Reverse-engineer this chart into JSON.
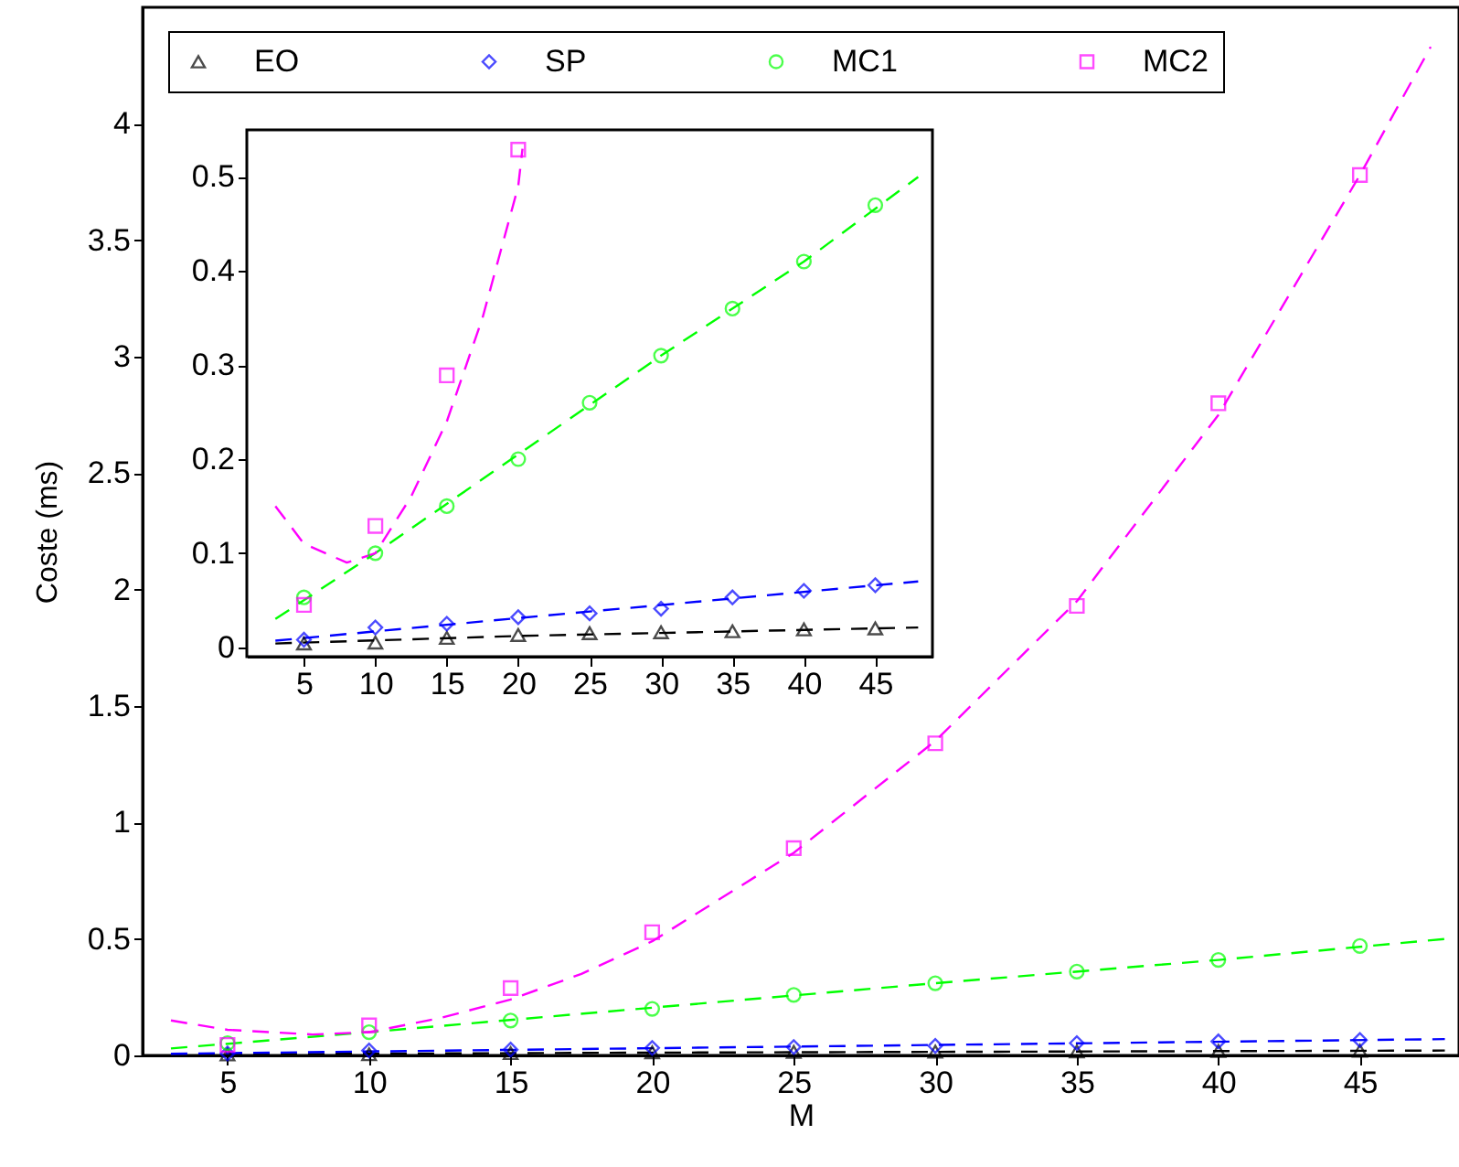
{
  "chart_data": [
    {
      "type": "scatter",
      "xlabel": "M",
      "ylabel": "Coste (ms)",
      "xlim": [
        2,
        48.5
      ],
      "ylim": [
        0,
        4.5
      ],
      "xticks": [
        5,
        10,
        15,
        20,
        25,
        30,
        35,
        40,
        45
      ],
      "yticks": [
        0,
        0.5,
        1,
        1.5,
        2,
        2.5,
        3,
        3.5,
        4
      ],
      "grid": false,
      "legend": "top",
      "series": [
        {
          "name": "EO",
          "marker": "triangle",
          "color": "#000000",
          "x": [
            5,
            10,
            15,
            20,
            25,
            30,
            35,
            40,
            45
          ],
          "values": [
            0.004,
            0.005,
            0.01,
            0.013,
            0.015,
            0.016,
            0.017,
            0.019,
            0.02
          ]
        },
        {
          "name": "SP",
          "marker": "diamond",
          "color": "#0000ff",
          "x": [
            5,
            10,
            15,
            20,
            25,
            30,
            35,
            40,
            45
          ],
          "values": [
            0.008,
            0.021,
            0.025,
            0.032,
            0.036,
            0.041,
            0.053,
            0.06,
            0.066
          ]
        },
        {
          "name": "MC1",
          "marker": "circle",
          "color": "#00ff00",
          "x": [
            5,
            10,
            15,
            20,
            25,
            30,
            35,
            40,
            45
          ],
          "values": [
            0.053,
            0.1,
            0.15,
            0.2,
            0.26,
            0.31,
            0.36,
            0.41,
            0.47
          ]
        },
        {
          "name": "MC2",
          "marker": "square",
          "color": "#ff00ff",
          "x": [
            5,
            10,
            15,
            20,
            25,
            30,
            35,
            40,
            45
          ],
          "values": [
            0.045,
            0.129,
            0.289,
            0.529,
            0.89,
            1.34,
            1.93,
            2.8,
            3.78
          ]
        },
        {
          "type": "line",
          "line_style": "dashed",
          "marker": "none",
          "color": "#000000",
          "x": [
            3,
            20,
            48
          ],
          "values": [
            0.004,
            0.012,
            0.021
          ]
        },
        {
          "type": "line",
          "line_style": "dashed",
          "marker": "none",
          "color": "#0000ff",
          "x": [
            3,
            20,
            48
          ],
          "values": [
            0.007,
            0.031,
            0.07
          ]
        },
        {
          "type": "line",
          "line_style": "dashed",
          "marker": "none",
          "color": "#00ff00",
          "x": [
            3,
            10,
            20,
            30,
            40,
            48
          ],
          "values": [
            0.03,
            0.1,
            0.205,
            0.31,
            0.41,
            0.5
          ]
        },
        {
          "type": "line",
          "line_style": "dashed",
          "marker": "none",
          "color": "#ff00ff",
          "x": [
            3,
            5,
            8,
            10,
            12.5,
            15,
            17.5,
            20,
            25,
            30,
            35,
            40,
            45,
            47.5
          ],
          "values": [
            0.15,
            0.11,
            0.09,
            0.1,
            0.16,
            0.24,
            0.35,
            0.49,
            0.87,
            1.35,
            1.95,
            2.75,
            3.78,
            4.33
          ]
        }
      ]
    },
    {
      "type": "scatter",
      "xlim": [
        1,
        49
      ],
      "ylim": [
        -0.01,
        0.55
      ],
      "xticks": [
        5,
        10,
        15,
        20,
        25,
        30,
        35,
        40,
        45
      ],
      "yticks": [
        0,
        0.1,
        0.2,
        0.3,
        0.4,
        0.5
      ],
      "grid": false,
      "series": [
        {
          "marker": "triangle",
          "color": "#000000",
          "x": [
            5,
            10,
            15,
            20,
            25,
            30,
            35,
            40,
            45
          ],
          "values": [
            0.004,
            0.005,
            0.01,
            0.013,
            0.015,
            0.016,
            0.017,
            0.019,
            0.02
          ]
        },
        {
          "marker": "diamond",
          "color": "#0000ff",
          "x": [
            5,
            10,
            15,
            20,
            25,
            30,
            35,
            40,
            45
          ],
          "values": [
            0.008,
            0.021,
            0.025,
            0.032,
            0.036,
            0.041,
            0.053,
            0.06,
            0.066
          ]
        },
        {
          "marker": "circle",
          "color": "#00ff00",
          "x": [
            5,
            10,
            15,
            20,
            25,
            30,
            35,
            40,
            45
          ],
          "values": [
            0.053,
            0.1,
            0.15,
            0.2,
            0.26,
            0.31,
            0.36,
            0.41,
            0.47
          ]
        },
        {
          "marker": "square",
          "color": "#ff00ff",
          "x": [
            5,
            10,
            15,
            20
          ],
          "values": [
            0.045,
            0.129,
            0.289,
            0.529
          ]
        },
        {
          "type": "line",
          "line_style": "dashed",
          "marker": "none",
          "color": "#000000",
          "x": [
            3,
            20,
            48
          ],
          "values": [
            0.004,
            0.012,
            0.021
          ]
        },
        {
          "type": "line",
          "line_style": "dashed",
          "marker": "none",
          "color": "#0000ff",
          "x": [
            3,
            20,
            48
          ],
          "values": [
            0.007,
            0.031,
            0.07
          ]
        },
        {
          "type": "line",
          "line_style": "dashed",
          "marker": "none",
          "color": "#00ff00",
          "x": [
            3,
            10,
            20,
            30,
            40,
            48
          ],
          "values": [
            0.03,
            0.1,
            0.205,
            0.31,
            0.41,
            0.5
          ]
        },
        {
          "type": "line",
          "line_style": "dashed",
          "marker": "none",
          "color": "#ff00ff",
          "x": [
            3,
            5,
            8,
            10,
            12.5,
            15,
            17.5,
            20,
            20.3
          ],
          "values": [
            0.15,
            0.11,
            0.09,
            0.1,
            0.16,
            0.24,
            0.35,
            0.49,
            0.53
          ]
        }
      ]
    }
  ]
}
